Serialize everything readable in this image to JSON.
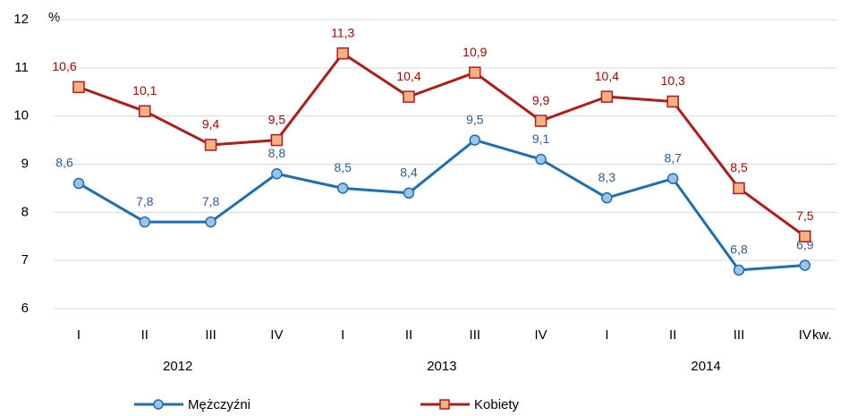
{
  "chart_data": {
    "type": "line",
    "y_label": "%",
    "x_label": "kw.",
    "categories": [
      "I",
      "II",
      "III",
      "IV",
      "I",
      "II",
      "III",
      "IV",
      "I",
      "II",
      "III",
      "IV"
    ],
    "groups": [
      "2012",
      "2013",
      "2014"
    ],
    "series": [
      {
        "name": "Mężczyźni",
        "color": "#1f6fb0",
        "marker_fill": "#9dc3e6",
        "label_color": "#2e5a99",
        "values": [
          8.6,
          7.8,
          7.8,
          8.8,
          8.5,
          8.4,
          9.5,
          9.1,
          8.3,
          8.7,
          6.8,
          6.9
        ],
        "value_labels": [
          "8,6",
          "7,8",
          "7,8",
          "8,8",
          "8,5",
          "8,4",
          "9,5",
          "9,1",
          "8,3",
          "8,7",
          "6,8",
          "6,9"
        ]
      },
      {
        "name": "Kobiety",
        "color": "#b01c1c",
        "marker_fill": "#f4b183",
        "label_color": "#b00000",
        "values": [
          10.6,
          10.1,
          9.4,
          9.5,
          11.3,
          10.4,
          10.9,
          9.9,
          10.4,
          10.3,
          8.5,
          7.5
        ],
        "value_labels": [
          "10,6",
          "10,1",
          "9,4",
          "9,5",
          "11,3",
          "10,4",
          "10,9",
          "9,9",
          "10,4",
          "10,3",
          "8,5",
          "7,5"
        ]
      }
    ],
    "ylim": [
      6,
      12
    ],
    "yticks": [
      6,
      7,
      8,
      9,
      10,
      11,
      12
    ],
    "grid": true
  }
}
